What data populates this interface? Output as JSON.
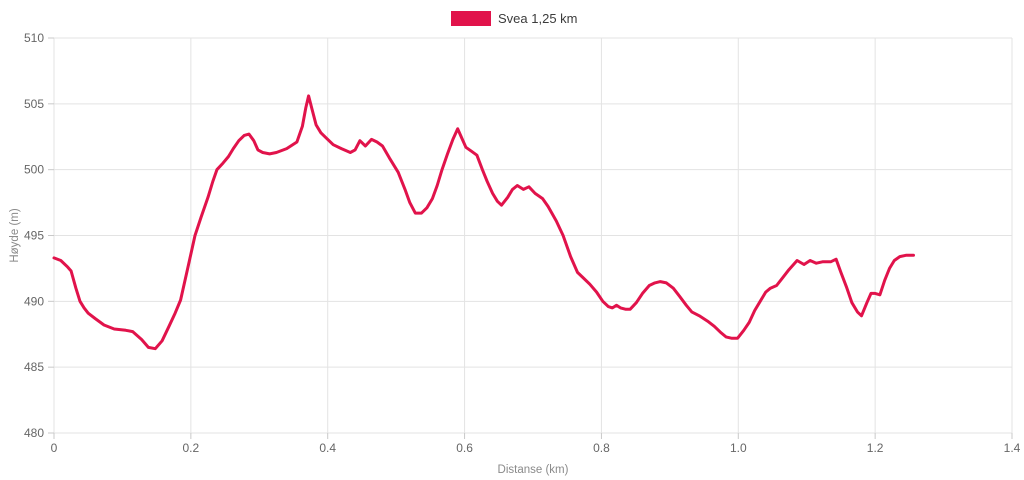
{
  "chart_data": {
    "type": "line",
    "title": "",
    "xlabel": "Distanse (km)",
    "ylabel": "Høyde (m)",
    "xlim": [
      0,
      1.4
    ],
    "ylim": [
      480,
      510
    ],
    "grid": true,
    "legend_position": "top-center",
    "x_ticks": [
      {
        "value": 0,
        "label": "0"
      },
      {
        "value": 0.2,
        "label": "0.2"
      },
      {
        "value": 0.4,
        "label": "0.4"
      },
      {
        "value": 0.6,
        "label": "0.6"
      },
      {
        "value": 0.8,
        "label": "0.8"
      },
      {
        "value": 1.0,
        "label": "1.0"
      },
      {
        "value": 1.2,
        "label": "1.2"
      },
      {
        "value": 1.4,
        "label": "1.4"
      }
    ],
    "y_ticks": [
      {
        "value": 480,
        "label": "480"
      },
      {
        "value": 485,
        "label": "485"
      },
      {
        "value": 490,
        "label": "490"
      },
      {
        "value": 495,
        "label": "495"
      },
      {
        "value": 500,
        "label": "500"
      },
      {
        "value": 505,
        "label": "505"
      },
      {
        "value": 510,
        "label": "510"
      }
    ],
    "series": [
      {
        "name": "Svea 1,25 km",
        "color": "#e1134b",
        "points": [
          [
            0.0,
            493.3
          ],
          [
            0.01,
            493.1
          ],
          [
            0.02,
            492.6
          ],
          [
            0.025,
            492.3
          ],
          [
            0.032,
            491.0
          ],
          [
            0.038,
            490.0
          ],
          [
            0.044,
            489.5
          ],
          [
            0.05,
            489.1
          ],
          [
            0.06,
            488.7
          ],
          [
            0.073,
            488.2
          ],
          [
            0.088,
            487.9
          ],
          [
            0.105,
            487.8
          ],
          [
            0.115,
            487.7
          ],
          [
            0.128,
            487.1
          ],
          [
            0.138,
            486.5
          ],
          [
            0.148,
            486.4
          ],
          [
            0.158,
            487.0
          ],
          [
            0.168,
            488.1
          ],
          [
            0.177,
            489.1
          ],
          [
            0.185,
            490.1
          ],
          [
            0.195,
            492.4
          ],
          [
            0.206,
            495.0
          ],
          [
            0.215,
            496.4
          ],
          [
            0.225,
            497.9
          ],
          [
            0.232,
            499.1
          ],
          [
            0.238,
            500.0
          ],
          [
            0.247,
            500.5
          ],
          [
            0.255,
            501.0
          ],
          [
            0.262,
            501.6
          ],
          [
            0.27,
            502.2
          ],
          [
            0.278,
            502.6
          ],
          [
            0.285,
            502.7
          ],
          [
            0.292,
            502.2
          ],
          [
            0.298,
            501.5
          ],
          [
            0.305,
            501.3
          ],
          [
            0.315,
            501.2
          ],
          [
            0.325,
            501.3
          ],
          [
            0.34,
            501.6
          ],
          [
            0.355,
            502.1
          ],
          [
            0.363,
            503.3
          ],
          [
            0.368,
            504.7
          ],
          [
            0.372,
            505.6
          ],
          [
            0.377,
            504.6
          ],
          [
            0.383,
            503.4
          ],
          [
            0.39,
            502.8
          ],
          [
            0.398,
            502.4
          ],
          [
            0.408,
            501.9
          ],
          [
            0.42,
            501.6
          ],
          [
            0.433,
            501.3
          ],
          [
            0.44,
            501.5
          ],
          [
            0.447,
            502.2
          ],
          [
            0.455,
            501.8
          ],
          [
            0.464,
            502.3
          ],
          [
            0.472,
            502.1
          ],
          [
            0.48,
            501.8
          ],
          [
            0.49,
            500.9
          ],
          [
            0.503,
            499.8
          ],
          [
            0.513,
            498.5
          ],
          [
            0.52,
            497.5
          ],
          [
            0.528,
            496.7
          ],
          [
            0.537,
            496.7
          ],
          [
            0.545,
            497.1
          ],
          [
            0.553,
            497.8
          ],
          [
            0.56,
            498.8
          ],
          [
            0.567,
            500.0
          ],
          [
            0.575,
            501.2
          ],
          [
            0.583,
            502.3
          ],
          [
            0.59,
            503.1
          ],
          [
            0.596,
            502.4
          ],
          [
            0.602,
            501.7
          ],
          [
            0.61,
            501.4
          ],
          [
            0.618,
            501.1
          ],
          [
            0.626,
            500.0
          ],
          [
            0.633,
            499.1
          ],
          [
            0.641,
            498.2
          ],
          [
            0.648,
            497.6
          ],
          [
            0.654,
            497.3
          ],
          [
            0.663,
            497.9
          ],
          [
            0.67,
            498.5
          ],
          [
            0.677,
            498.8
          ],
          [
            0.686,
            498.5
          ],
          [
            0.694,
            498.7
          ],
          [
            0.703,
            498.2
          ],
          [
            0.714,
            497.8
          ],
          [
            0.722,
            497.2
          ],
          [
            0.734,
            496.1
          ],
          [
            0.744,
            495.0
          ],
          [
            0.755,
            493.4
          ],
          [
            0.765,
            492.2
          ],
          [
            0.773,
            491.8
          ],
          [
            0.783,
            491.3
          ],
          [
            0.793,
            490.7
          ],
          [
            0.802,
            490.0
          ],
          [
            0.81,
            489.6
          ],
          [
            0.816,
            489.5
          ],
          [
            0.822,
            489.7
          ],
          [
            0.828,
            489.5
          ],
          [
            0.835,
            489.4
          ],
          [
            0.842,
            489.4
          ],
          [
            0.851,
            489.9
          ],
          [
            0.86,
            490.6
          ],
          [
            0.87,
            491.2
          ],
          [
            0.878,
            491.4
          ],
          [
            0.886,
            491.5
          ],
          [
            0.895,
            491.4
          ],
          [
            0.905,
            491.0
          ],
          [
            0.914,
            490.4
          ],
          [
            0.924,
            489.7
          ],
          [
            0.932,
            489.2
          ],
          [
            0.943,
            488.9
          ],
          [
            0.955,
            488.5
          ],
          [
            0.965,
            488.1
          ],
          [
            0.975,
            487.6
          ],
          [
            0.982,
            487.3
          ],
          [
            0.99,
            487.2
          ],
          [
            0.999,
            487.2
          ],
          [
            1.008,
            487.8
          ],
          [
            1.016,
            488.4
          ],
          [
            1.024,
            489.3
          ],
          [
            1.032,
            490.0
          ],
          [
            1.04,
            490.7
          ],
          [
            1.047,
            491.0
          ],
          [
            1.056,
            491.2
          ],
          [
            1.065,
            491.8
          ],
          [
            1.074,
            492.4
          ],
          [
            1.086,
            493.1
          ],
          [
            1.096,
            492.8
          ],
          [
            1.105,
            493.1
          ],
          [
            1.114,
            492.9
          ],
          [
            1.123,
            493.0
          ],
          [
            1.135,
            493.0
          ],
          [
            1.143,
            493.2
          ],
          [
            1.15,
            492.2
          ],
          [
            1.158,
            491.1
          ],
          [
            1.166,
            489.9
          ],
          [
            1.174,
            489.2
          ],
          [
            1.18,
            488.9
          ],
          [
            1.188,
            489.9
          ],
          [
            1.194,
            490.6
          ],
          [
            1.2,
            490.6
          ],
          [
            1.207,
            490.5
          ],
          [
            1.214,
            491.6
          ],
          [
            1.221,
            492.5
          ],
          [
            1.228,
            493.1
          ],
          [
            1.236,
            493.4
          ],
          [
            1.245,
            493.5
          ],
          [
            1.256,
            493.5
          ]
        ]
      }
    ]
  },
  "legend": {
    "series_label": "Svea 1,25 km"
  },
  "colors": {
    "line": "#e1134b",
    "grid": "#e3e3e3",
    "tick": "#c9c9c9",
    "tick_label": "#666666",
    "axis_title": "#8a8a8a",
    "legend_text": "#3c3c3c",
    "background": "#ffffff"
  }
}
